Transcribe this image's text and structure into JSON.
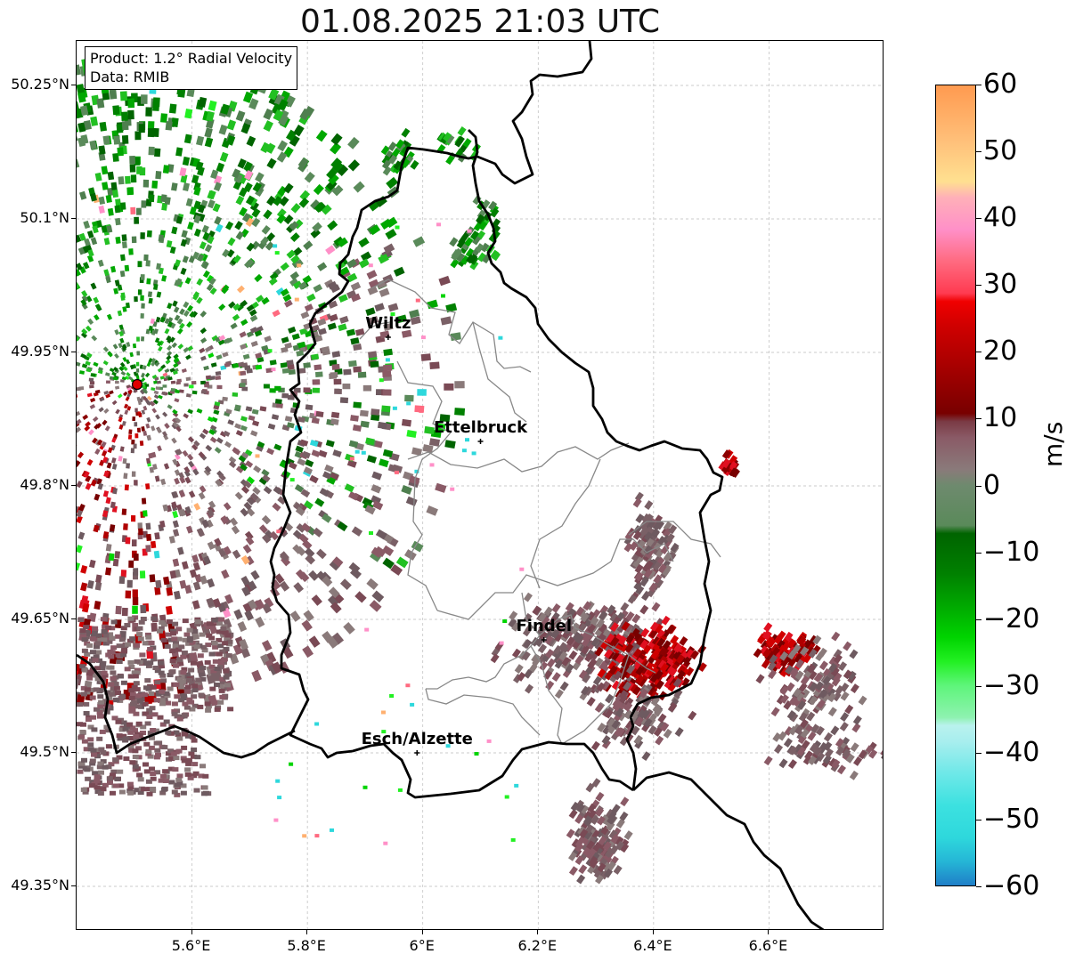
{
  "title": "01.08.2025 21:03 UTC",
  "info": {
    "product": "Product: 1.2° Radial Velocity",
    "data": "Data: RMIB"
  },
  "lat_ticks": [
    "50.25°N",
    "50.1°N",
    "49.95°N",
    "49.8°N",
    "49.65°N",
    "49.5°N",
    "49.35°N"
  ],
  "lon_ticks": [
    "5.6°E",
    "5.8°E",
    "6°E",
    "6.2°E",
    "6.4°E",
    "6.6°E"
  ],
  "cities": [
    {
      "name": "Wiltz",
      "lon": 5.94,
      "lat": 49.967
    },
    {
      "name": "Ettelbruck",
      "lon": 6.1,
      "lat": 49.85
    },
    {
      "name": "Findel",
      "lon": 6.21,
      "lat": 49.627
    },
    {
      "name": "Esch/Alzette",
      "lon": 5.99,
      "lat": 49.5
    }
  ],
  "radar_site": {
    "lon": 5.505,
    "lat": 49.914
  },
  "colorbar": {
    "label": "m/s",
    "ticks": [
      "60",
      "50",
      "40",
      "30",
      "20",
      "10",
      "0",
      "−10",
      "−20",
      "−30",
      "−40",
      "−50",
      "−60"
    ],
    "range": [
      -60,
      60
    ]
  },
  "map_extent": {
    "lon": [
      5.4,
      6.8
    ],
    "lat": [
      49.3,
      50.3
    ]
  }
}
